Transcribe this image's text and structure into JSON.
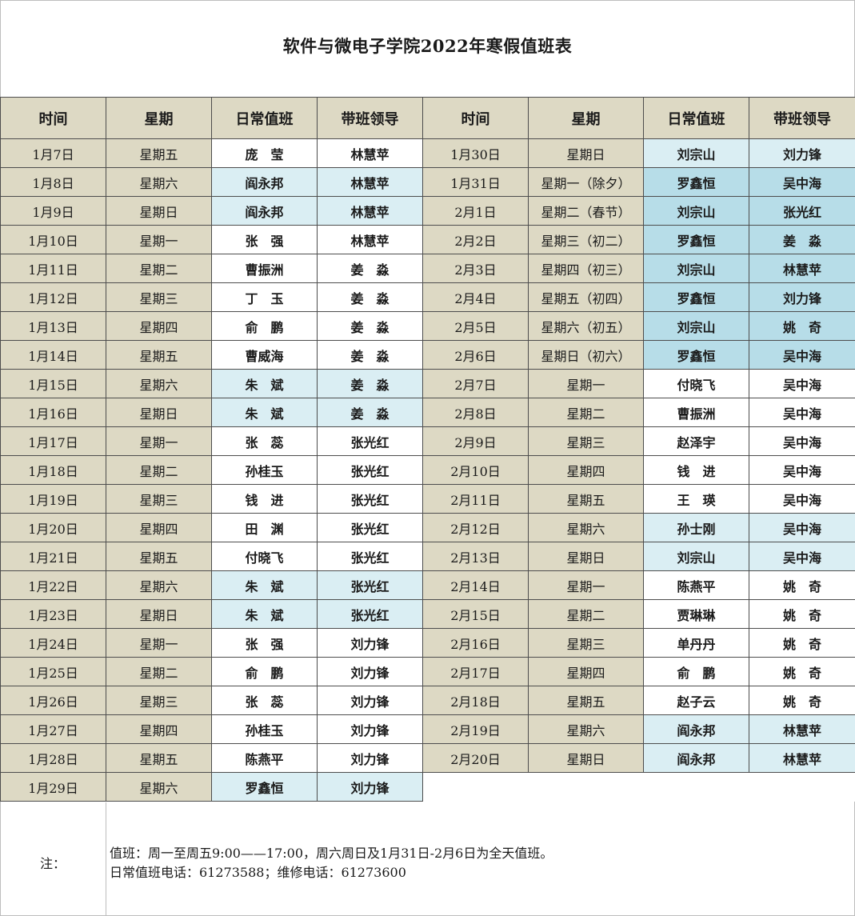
{
  "title": "软件与微电子学院2022年寒假值班表",
  "headers": [
    "时间",
    "星期",
    "日常值班",
    "带班领导",
    "时间",
    "星期",
    "日常值班",
    "带班领导"
  ],
  "colors": {
    "header_tan": "#ddd9c4",
    "light_blue": "#daeef3",
    "medium_blue": "#b7dde8"
  },
  "left_rows": [
    {
      "date": "1月7日",
      "weekday": "星期五",
      "duty": "庞　莹",
      "leader": "林慧苹",
      "duty_bg": "white",
      "leader_bg": "white"
    },
    {
      "date": "1月8日",
      "weekday": "星期六",
      "duty": "阎永邦",
      "leader": "林慧苹",
      "duty_bg": "light",
      "leader_bg": "light"
    },
    {
      "date": "1月9日",
      "weekday": "星期日",
      "duty": "阎永邦",
      "leader": "林慧苹",
      "duty_bg": "light",
      "leader_bg": "light"
    },
    {
      "date": "1月10日",
      "weekday": "星期一",
      "duty": "张　强",
      "leader": "林慧苹",
      "duty_bg": "white",
      "leader_bg": "white"
    },
    {
      "date": "1月11日",
      "weekday": "星期二",
      "duty": "曹振洲",
      "leader": "姜　淼",
      "duty_bg": "white",
      "leader_bg": "white"
    },
    {
      "date": "1月12日",
      "weekday": "星期三",
      "duty": "丁　玉",
      "leader": "姜　淼",
      "duty_bg": "white",
      "leader_bg": "white"
    },
    {
      "date": "1月13日",
      "weekday": "星期四",
      "duty": "俞　鹏",
      "leader": "姜　淼",
      "duty_bg": "white",
      "leader_bg": "white"
    },
    {
      "date": "1月14日",
      "weekday": "星期五",
      "duty": "曹威海",
      "leader": "姜　淼",
      "duty_bg": "white",
      "leader_bg": "white"
    },
    {
      "date": "1月15日",
      "weekday": "星期六",
      "duty": "朱　斌",
      "leader": "姜　淼",
      "duty_bg": "light",
      "leader_bg": "light"
    },
    {
      "date": "1月16日",
      "weekday": "星期日",
      "duty": "朱　斌",
      "leader": "姜　淼",
      "duty_bg": "light",
      "leader_bg": "light"
    },
    {
      "date": "1月17日",
      "weekday": "星期一",
      "duty": "张　蕊",
      "leader": "张光红",
      "duty_bg": "white",
      "leader_bg": "white"
    },
    {
      "date": "1月18日",
      "weekday": "星期二",
      "duty": "孙桂玉",
      "leader": "张光红",
      "duty_bg": "white",
      "leader_bg": "white"
    },
    {
      "date": "1月19日",
      "weekday": "星期三",
      "duty": "钱　进",
      "leader": "张光红",
      "duty_bg": "white",
      "leader_bg": "white"
    },
    {
      "date": "1月20日",
      "weekday": "星期四",
      "duty": "田　渊",
      "leader": "张光红",
      "duty_bg": "white",
      "leader_bg": "white"
    },
    {
      "date": "1月21日",
      "weekday": "星期五",
      "duty": "付晓飞",
      "leader": "张光红",
      "duty_bg": "white",
      "leader_bg": "white"
    },
    {
      "date": "1月22日",
      "weekday": "星期六",
      "duty": "朱　斌",
      "leader": "张光红",
      "duty_bg": "light",
      "leader_bg": "light"
    },
    {
      "date": "1月23日",
      "weekday": "星期日",
      "duty": "朱　斌",
      "leader": "张光红",
      "duty_bg": "light",
      "leader_bg": "light"
    },
    {
      "date": "1月24日",
      "weekday": "星期一",
      "duty": "张　强",
      "leader": "刘力锋",
      "duty_bg": "white",
      "leader_bg": "white"
    },
    {
      "date": "1月25日",
      "weekday": "星期二",
      "duty": "俞　鹏",
      "leader": "刘力锋",
      "duty_bg": "white",
      "leader_bg": "white"
    },
    {
      "date": "1月26日",
      "weekday": "星期三",
      "duty": "张　蕊",
      "leader": "刘力锋",
      "duty_bg": "white",
      "leader_bg": "white"
    },
    {
      "date": "1月27日",
      "weekday": "星期四",
      "duty": "孙桂玉",
      "leader": "刘力锋",
      "duty_bg": "white",
      "leader_bg": "white"
    },
    {
      "date": "1月28日",
      "weekday": "星期五",
      "duty": "陈燕平",
      "leader": "刘力锋",
      "duty_bg": "white",
      "leader_bg": "white"
    },
    {
      "date": "1月29日",
      "weekday": "星期六",
      "duty": "罗鑫恒",
      "leader": "刘力锋",
      "duty_bg": "light",
      "leader_bg": "light"
    }
  ],
  "right_rows": [
    {
      "date": "1月30日",
      "weekday": "星期日",
      "duty": "刘宗山",
      "leader": "刘力锋",
      "duty_bg": "light",
      "leader_bg": "light"
    },
    {
      "date": "1月31日",
      "weekday": "星期一（除夕）",
      "duty": "罗鑫恒",
      "leader": "吴中海",
      "duty_bg": "medium",
      "leader_bg": "medium"
    },
    {
      "date": "2月1日",
      "weekday": "星期二（春节）",
      "duty": "刘宗山",
      "leader": "张光红",
      "duty_bg": "medium",
      "leader_bg": "medium"
    },
    {
      "date": "2月2日",
      "weekday": "星期三（初二）",
      "duty": "罗鑫恒",
      "leader": "姜　淼",
      "duty_bg": "medium",
      "leader_bg": "medium"
    },
    {
      "date": "2月3日",
      "weekday": "星期四（初三）",
      "duty": "刘宗山",
      "leader": "林慧苹",
      "duty_bg": "medium",
      "leader_bg": "medium"
    },
    {
      "date": "2月4日",
      "weekday": "星期五（初四）",
      "duty": "罗鑫恒",
      "leader": "刘力锋",
      "duty_bg": "medium",
      "leader_bg": "medium"
    },
    {
      "date": "2月5日",
      "weekday": "星期六（初五）",
      "duty": "刘宗山",
      "leader": "姚　奇",
      "duty_bg": "medium",
      "leader_bg": "medium"
    },
    {
      "date": "2月6日",
      "weekday": "星期日（初六）",
      "duty": "罗鑫恒",
      "leader": "吴中海",
      "duty_bg": "medium",
      "leader_bg": "medium"
    },
    {
      "date": "2月7日",
      "weekday": "星期一",
      "duty": "付晓飞",
      "leader": "吴中海",
      "duty_bg": "white",
      "leader_bg": "white"
    },
    {
      "date": "2月8日",
      "weekday": "星期二",
      "duty": "曹振洲",
      "leader": "吴中海",
      "duty_bg": "white",
      "leader_bg": "white"
    },
    {
      "date": "2月9日",
      "weekday": "星期三",
      "duty": "赵泽宇",
      "leader": "吴中海",
      "duty_bg": "white",
      "leader_bg": "white"
    },
    {
      "date": "2月10日",
      "weekday": "星期四",
      "duty": "钱　进",
      "leader": "吴中海",
      "duty_bg": "white",
      "leader_bg": "white"
    },
    {
      "date": "2月11日",
      "weekday": "星期五",
      "duty": "王　瑛",
      "leader": "吴中海",
      "duty_bg": "white",
      "leader_bg": "white"
    },
    {
      "date": "2月12日",
      "weekday": "星期六",
      "duty": "孙士刚",
      "leader": "吴中海",
      "duty_bg": "light",
      "leader_bg": "light"
    },
    {
      "date": "2月13日",
      "weekday": "星期日",
      "duty": "刘宗山",
      "leader": "吴中海",
      "duty_bg": "light",
      "leader_bg": "light"
    },
    {
      "date": "2月14日",
      "weekday": "星期一",
      "duty": "陈燕平",
      "leader": "姚　奇",
      "duty_bg": "white",
      "leader_bg": "white"
    },
    {
      "date": "2月15日",
      "weekday": "星期二",
      "duty": "贾琳琳",
      "leader": "姚　奇",
      "duty_bg": "white",
      "leader_bg": "white"
    },
    {
      "date": "2月16日",
      "weekday": "星期三",
      "duty": "单丹丹",
      "leader": "姚　奇",
      "duty_bg": "white",
      "leader_bg": "white"
    },
    {
      "date": "2月17日",
      "weekday": "星期四",
      "duty": "俞　鹏",
      "leader": "姚　奇",
      "duty_bg": "white",
      "leader_bg": "white"
    },
    {
      "date": "2月18日",
      "weekday": "星期五",
      "duty": "赵子云",
      "leader": "姚　奇",
      "duty_bg": "white",
      "leader_bg": "white"
    },
    {
      "date": "2月19日",
      "weekday": "星期六",
      "duty": "阎永邦",
      "leader": "林慧苹",
      "duty_bg": "light",
      "leader_bg": "light"
    },
    {
      "date": "2月20日",
      "weekday": "星期日",
      "duty": "阎永邦",
      "leader": "林慧苹",
      "duty_bg": "light",
      "leader_bg": "light"
    }
  ],
  "notes": {
    "label": "注：",
    "line1": "值班：周一至周五9:00——17:00，周六周日及1月31日-2月6日为全天值班。",
    "line2": "日常值班电话：61273588；维修电话：61273600"
  }
}
